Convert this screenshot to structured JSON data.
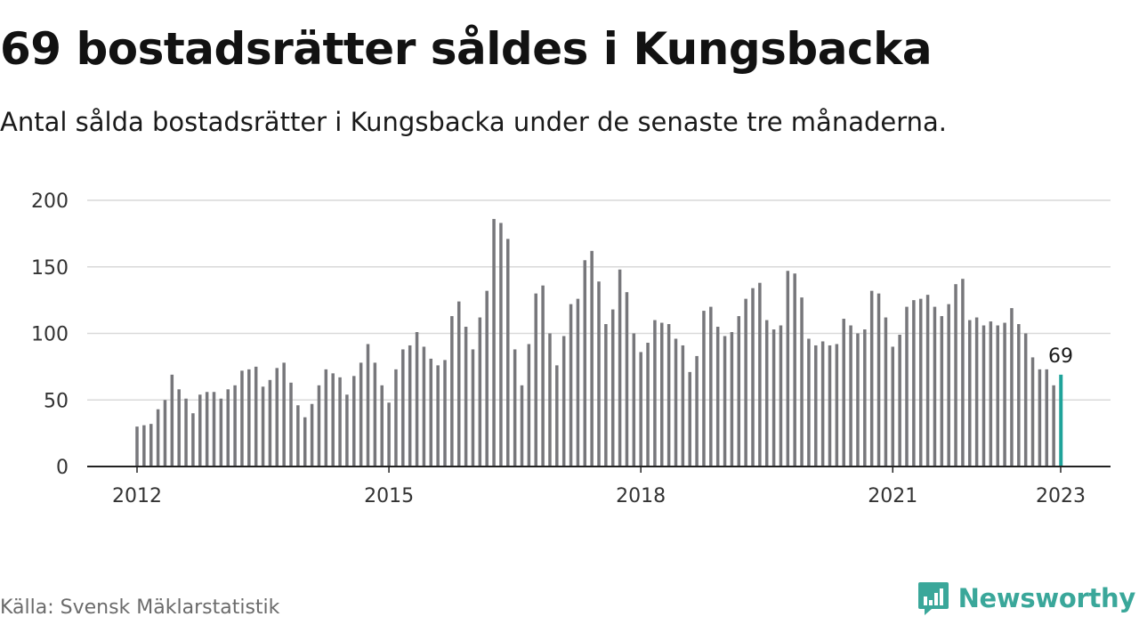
{
  "title": "69 bostadsrätter såldes i Kungsbacka",
  "subtitle": "Antal sålda bostadsrätter i Kungsbacka under de senaste tre månaderna.",
  "source": "Källa: Svensk Mäklarstatistik",
  "brand": {
    "name": "Newsworthy",
    "icon": "newsworthy-logo-icon"
  },
  "colors": {
    "bar": "#77777b",
    "highlight": "#1fa39a",
    "grid": "#d9d9d9",
    "axis": "#222222",
    "brand": "#3aa79a"
  },
  "chart_data": {
    "type": "bar",
    "title": "69 bostadsrätter såldes i Kungsbacka",
    "subtitle": "Antal sålda bostadsrätter i Kungsbacka under de senaste tre månaderna.",
    "xlabel": "",
    "ylabel": "",
    "ylim": [
      0,
      200
    ],
    "yticks": [
      0,
      50,
      100,
      150,
      200
    ],
    "xticks": [
      {
        "label": "2012",
        "index": 0
      },
      {
        "label": "2015",
        "index": 36
      },
      {
        "label": "2018",
        "index": 72
      },
      {
        "label": "2021",
        "index": 108
      },
      {
        "label": "2023",
        "index": 132
      }
    ],
    "start": "2012-01",
    "end": "2023-01",
    "grid": true,
    "highlight_last": true,
    "last_label": "69",
    "series": [
      {
        "values": [
          30,
          31,
          32,
          43,
          50,
          69,
          58,
          51,
          40,
          54,
          56,
          56,
          51,
          58,
          61,
          72,
          73,
          75,
          60,
          65,
          74,
          78,
          63,
          46,
          37,
          47,
          61,
          73,
          70,
          67,
          54,
          68,
          78,
          92,
          78,
          61,
          48,
          73,
          88,
          91,
          101,
          90,
          81,
          76,
          80,
          113,
          124,
          105,
          88,
          112,
          132,
          186,
          183,
          171,
          88,
          61,
          92,
          130,
          136,
          100,
          76,
          98,
          122,
          126,
          155,
          162,
          139,
          107,
          118,
          148,
          131,
          100,
          86,
          93,
          110,
          108,
          107,
          96,
          91,
          71,
          83,
          117,
          120,
          105,
          98,
          101,
          113,
          126,
          134,
          138,
          110,
          103,
          106,
          147,
          145,
          127,
          96,
          91,
          94,
          91,
          92,
          111,
          106,
          100,
          103,
          132,
          130,
          112,
          90,
          99,
          120,
          125,
          126,
          129,
          120,
          113,
          122,
          137,
          141,
          110,
          112,
          106,
          109,
          106,
          108,
          119,
          107,
          100,
          82,
          73,
          73,
          61,
          69
        ]
      }
    ]
  }
}
